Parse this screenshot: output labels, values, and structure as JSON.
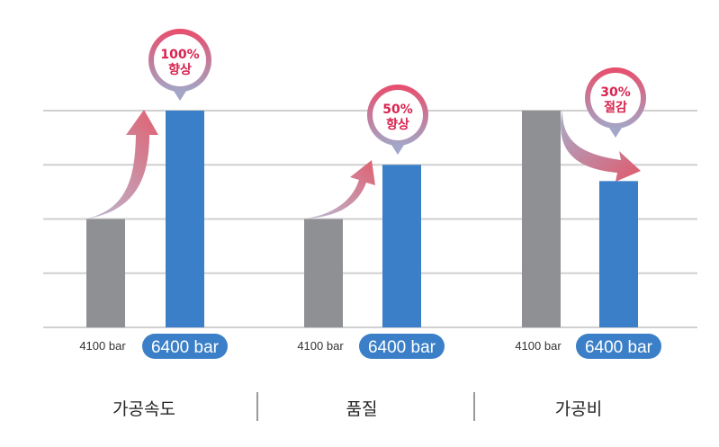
{
  "chart_data": {
    "type": "bar",
    "categories": [
      "가공속도",
      "품질",
      "가공비"
    ],
    "series": [
      {
        "name": "4100 bar",
        "values": [
          2,
          2,
          4
        ]
      },
      {
        "name": "6400 bar",
        "values": [
          4,
          3,
          2.7
        ]
      }
    ],
    "ylim": [
      0,
      4
    ],
    "grid": true,
    "annotations": [
      {
        "value": "100%",
        "word": "향상"
      },
      {
        "value": "50%",
        "word": "향상"
      },
      {
        "value": "30%",
        "word": "절감"
      }
    ],
    "colors": {
      "old": "#8f9093",
      "new": "#3a7fc7",
      "pill": "#3a7fc7",
      "grid": "#d0d0d0",
      "separator": "#9a9a9a",
      "bubble_ring_top": "#e94d6b",
      "bubble_ring_bottom": "#9aa2c3",
      "bubble_text": "#d8234f"
    }
  }
}
